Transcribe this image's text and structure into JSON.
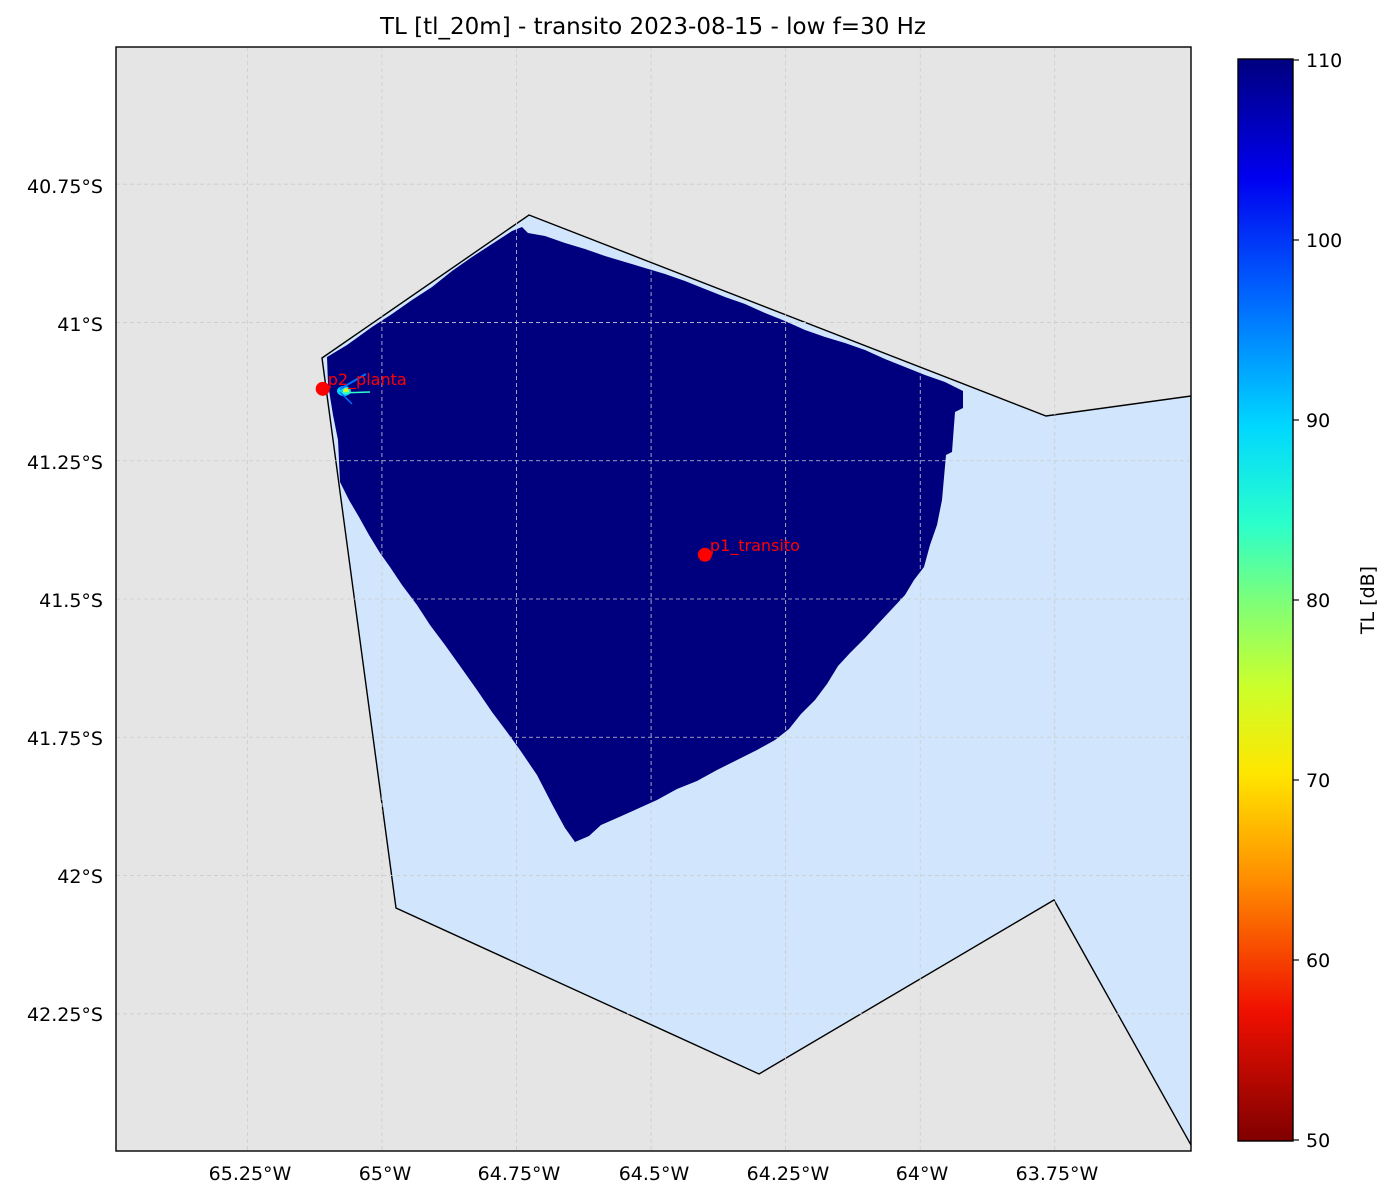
{
  "title": "TL [tl_20m] - transito 2023-08-15 - low f=30 Hz",
  "lon_ticks": [
    "65.25°W",
    "65°W",
    "64.75°W",
    "64.5°W",
    "64.25°W",
    "64°W",
    "63.75°W"
  ],
  "lat_ticks": [
    "40.75°S",
    "41°S",
    "41.25°S",
    "41.5°S",
    "41.75°S",
    "42°S",
    "42.25°S"
  ],
  "lon_values": [
    -65.25,
    -65.0,
    -64.75,
    -64.5,
    -64.25,
    -64.0,
    -63.75
  ],
  "lat_values": [
    -40.75,
    -41.0,
    -41.25,
    -41.5,
    -41.75,
    -42.0,
    -42.25
  ],
  "map_extent": {
    "lon_min": -65.494,
    "lon_max": -63.497,
    "lat_min": -42.498,
    "lat_max": -40.502
  },
  "colorbar": {
    "label": "TL [dB]",
    "min": 50,
    "max": 110,
    "tick_labels": [
      "110",
      "100",
      "90",
      "80",
      "70",
      "60",
      "50"
    ],
    "tick_values": [
      110,
      100,
      90,
      80,
      70,
      60,
      50
    ],
    "colormap": "jet reversed"
  },
  "points": [
    {
      "label": "p2_planta",
      "lon": -65.11,
      "lat": -41.12
    },
    {
      "label": "p1_transito",
      "lon": -64.4,
      "lat": -41.42
    }
  ],
  "colors": {
    "land": "#e5e5e5",
    "sea": "#d1e6fc",
    "tl_field": "#00007f",
    "point": "#ff0000",
    "label": "#ff0000",
    "grid": "#cccccc"
  }
}
